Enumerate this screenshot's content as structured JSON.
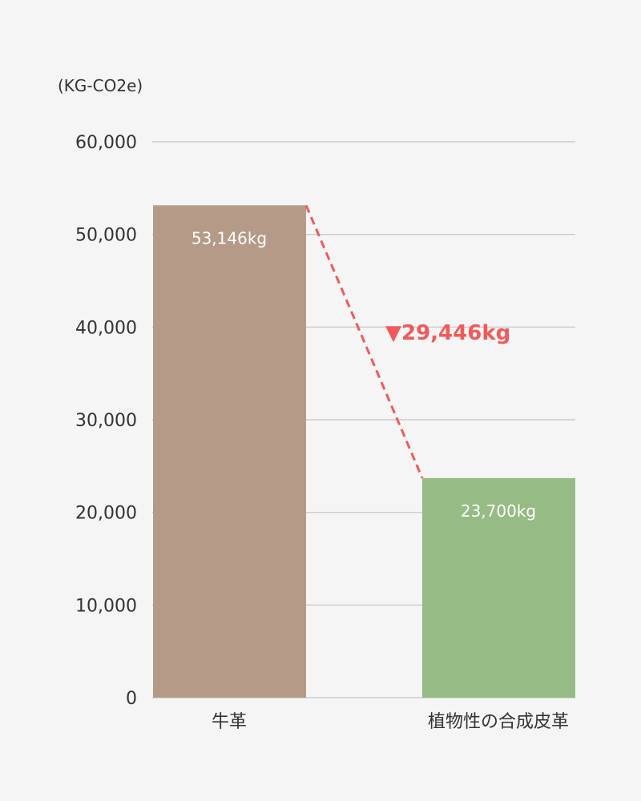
{
  "chart_data": {
    "type": "bar",
    "unit_label": "(KG-CO2e)",
    "categories": [
      "牛革",
      "植物性の合成皮革"
    ],
    "values": [
      53146,
      23700
    ],
    "value_labels": [
      "53,146kg",
      "23,700kg"
    ],
    "bar_colors": [
      "#b59b87",
      "#96bb84"
    ],
    "ylim": [
      0,
      60000
    ],
    "yticks": [
      0,
      10000,
      20000,
      30000,
      40000,
      50000,
      60000
    ],
    "ytick_labels": [
      "0",
      "10,000",
      "20,000",
      "30,000",
      "40,000",
      "50,000",
      "60,000"
    ],
    "grid": true,
    "difference": {
      "value": 29446,
      "label": "▼29,446kg",
      "color": "#f05a5a"
    }
  }
}
